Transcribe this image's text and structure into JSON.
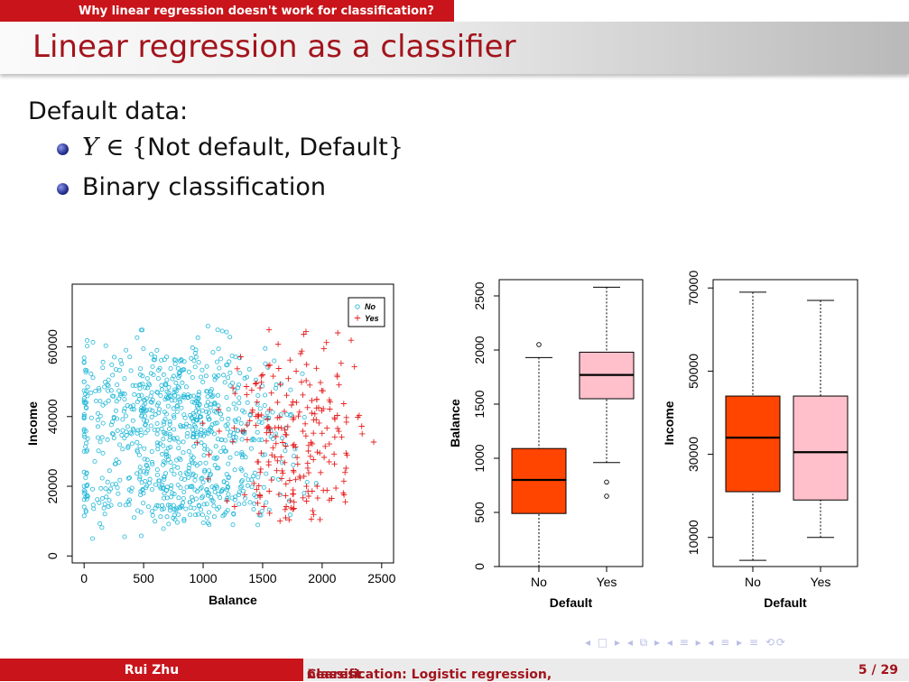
{
  "header": {
    "section": "Why linear regression doesn't work for classification?",
    "title": "Linear regression as a classifier"
  },
  "body": {
    "intro": "Default data:",
    "bullet1": {
      "var": "Y",
      "set": "∈ {",
      "text": "Not default, Default",
      "close": "}"
    },
    "bullet2": "Binary classification"
  },
  "chart_data": [
    {
      "type": "scatter",
      "xlabel": "Balance",
      "ylabel": "Income",
      "xlim": [
        -100,
        2600
      ],
      "ylim": [
        -2000,
        78000
      ],
      "xticks": [
        "0",
        "500",
        "1000",
        "1500",
        "2000",
        "2500"
      ],
      "yticks": [
        "0",
        "20000",
        "40000",
        "60000"
      ],
      "legend": {
        "position": "top-right",
        "entries": [
          "No",
          "Yes"
        ]
      },
      "colors": {
        "No": "#22b8d8",
        "Yes": "#e62020"
      },
      "series": [
        {
          "name": "No",
          "marker": "circle",
          "n": 900,
          "xmin": 0,
          "xmax": 1950,
          "ymin": 5000,
          "ymax": 69000
        },
        {
          "name": "Yes",
          "marker": "plus",
          "n": 240,
          "xmin": 950,
          "xmax": 2550,
          "ymin": 10000,
          "ymax": 67000
        }
      ]
    },
    {
      "type": "box",
      "xlabel": "Default",
      "ylabel": "Balance",
      "ylim": [
        0,
        2650
      ],
      "yticks": [
        "0",
        "500",
        "1000",
        "1500",
        "2000",
        "2500"
      ],
      "categories": [
        "No",
        "Yes"
      ],
      "colors": [
        "#ff4500",
        "#ffc0cb"
      ],
      "boxes": [
        {
          "min": 0,
          "q1": 490,
          "median": 800,
          "q3": 1090,
          "max": 1930,
          "outliers": [
            2050
          ]
        },
        {
          "min": 960,
          "q1": 1550,
          "median": 1770,
          "q3": 1980,
          "max": 2580,
          "outliers": [
            780,
            650
          ]
        }
      ]
    },
    {
      "type": "box",
      "xlabel": "Default",
      "ylabel": "Income",
      "ylim": [
        3000,
        72000
      ],
      "yticks": [
        "10000",
        "30000",
        "50000",
        "70000"
      ],
      "categories": [
        "No",
        "Yes"
      ],
      "colors": [
        "#ff4500",
        "#ffc0cb"
      ],
      "boxes": [
        {
          "min": 4500,
          "q1": 21000,
          "median": 34000,
          "q3": 44000,
          "max": 69000,
          "outliers": []
        },
        {
          "min": 10000,
          "q1": 19000,
          "median": 30500,
          "q3": 44000,
          "max": 67000,
          "outliers": []
        }
      ]
    }
  ],
  "footer": {
    "author": "Rui Zhu",
    "short_title": "Classification: Logistic regression, ",
    "short_title_k": "k",
    "short_title_end": " nearest",
    "page": "5 / 29"
  },
  "nav": "◂ □ ▸ ◂ ⧉ ▸ ◂ ≡ ▸ ◂ ≡ ▸   ≡   ⟲⟳"
}
